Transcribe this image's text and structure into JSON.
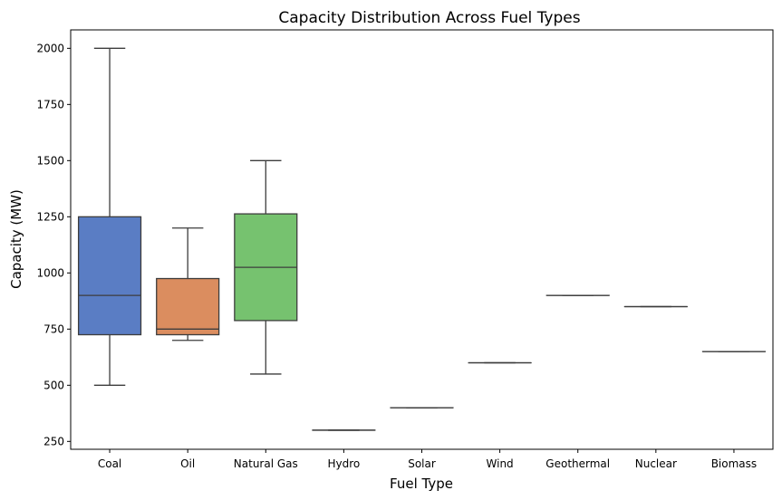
{
  "chart_data": {
    "type": "boxplot",
    "title": "Capacity Distribution Across Fuel Types",
    "xlabel": "Fuel Type",
    "ylabel": "Capacity (MW)",
    "ylim": [
      215,
      2082
    ],
    "yticks": [
      250,
      500,
      750,
      1000,
      1250,
      1500,
      1750,
      2000
    ],
    "grid": false,
    "categories": [
      "Coal",
      "Oil",
      "Natural Gas",
      "Hydro",
      "Solar",
      "Wind",
      "Geothermal",
      "Nuclear",
      "Biomass"
    ],
    "boxes": [
      {
        "name": "Coal",
        "min": 500,
        "q1": 725,
        "median": 900,
        "q3": 1250,
        "max": 2000,
        "color": "#5a7dc4"
      },
      {
        "name": "Oil",
        "min": 700,
        "q1": 725,
        "median": 750,
        "q3": 975,
        "max": 1200,
        "color": "#db8d5f"
      },
      {
        "name": "Natural Gas",
        "min": 550,
        "q1": 788,
        "median": 1025,
        "q3": 1263,
        "max": 1500,
        "color": "#76c26f"
      },
      {
        "name": "Hydro",
        "min": 300,
        "q1": 300,
        "median": 300,
        "q3": 300,
        "max": 300,
        "color": "#c84a4c"
      },
      {
        "name": "Solar",
        "min": 400,
        "q1": 400,
        "median": 400,
        "q3": 400,
        "max": 400,
        "color": "#8f79b8"
      },
      {
        "name": "Wind",
        "min": 600,
        "q1": 600,
        "median": 600,
        "q3": 600,
        "max": 600,
        "color": "#8f6e60"
      },
      {
        "name": "Geothermal",
        "min": 900,
        "q1": 900,
        "median": 900,
        "q3": 900,
        "max": 900,
        "color": "#d48fc3"
      },
      {
        "name": "Nuclear",
        "min": 850,
        "q1": 850,
        "median": 850,
        "q3": 850,
        "max": 850,
        "color": "#8c8c8c"
      },
      {
        "name": "Biomass",
        "min": 650,
        "q1": 650,
        "median": 650,
        "q3": 650,
        "max": 650,
        "color": "#c8b95a"
      }
    ]
  }
}
